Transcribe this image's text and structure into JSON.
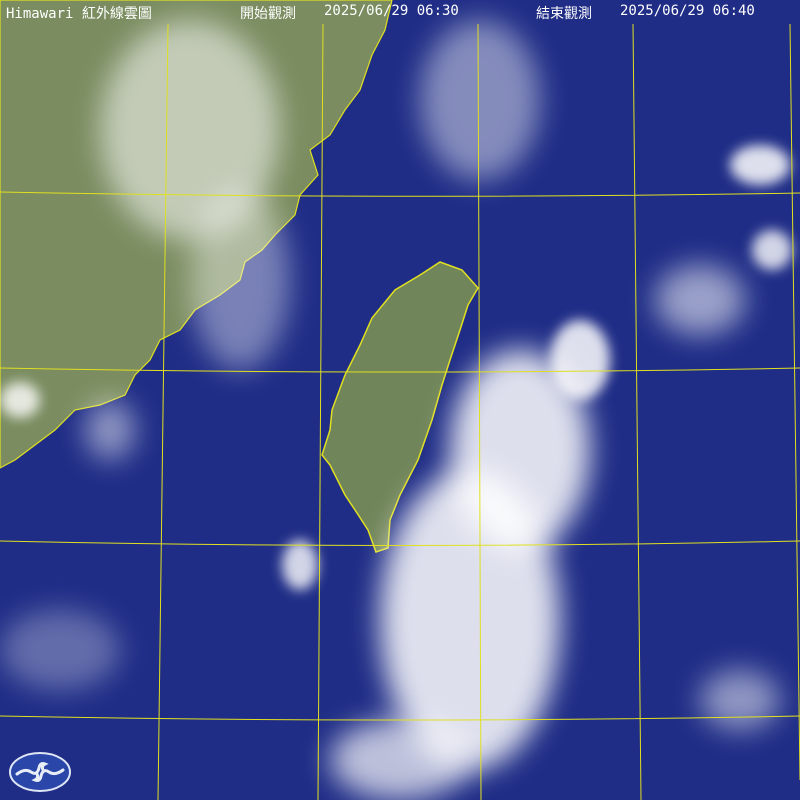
{
  "header": {
    "title": "Himawari 紅外線雲圖",
    "start_label": "開始觀測",
    "start_time": "2025/06/29 06:30",
    "end_label": "結束觀測",
    "end_time": "2025/06/29 06:40"
  },
  "colors": {
    "ocean": "#1f2d86",
    "land": "#7a8c60",
    "grid": "#e0e020",
    "cloud": "#ffffff"
  },
  "logo": {
    "icon": "weather-bureau-logo"
  }
}
